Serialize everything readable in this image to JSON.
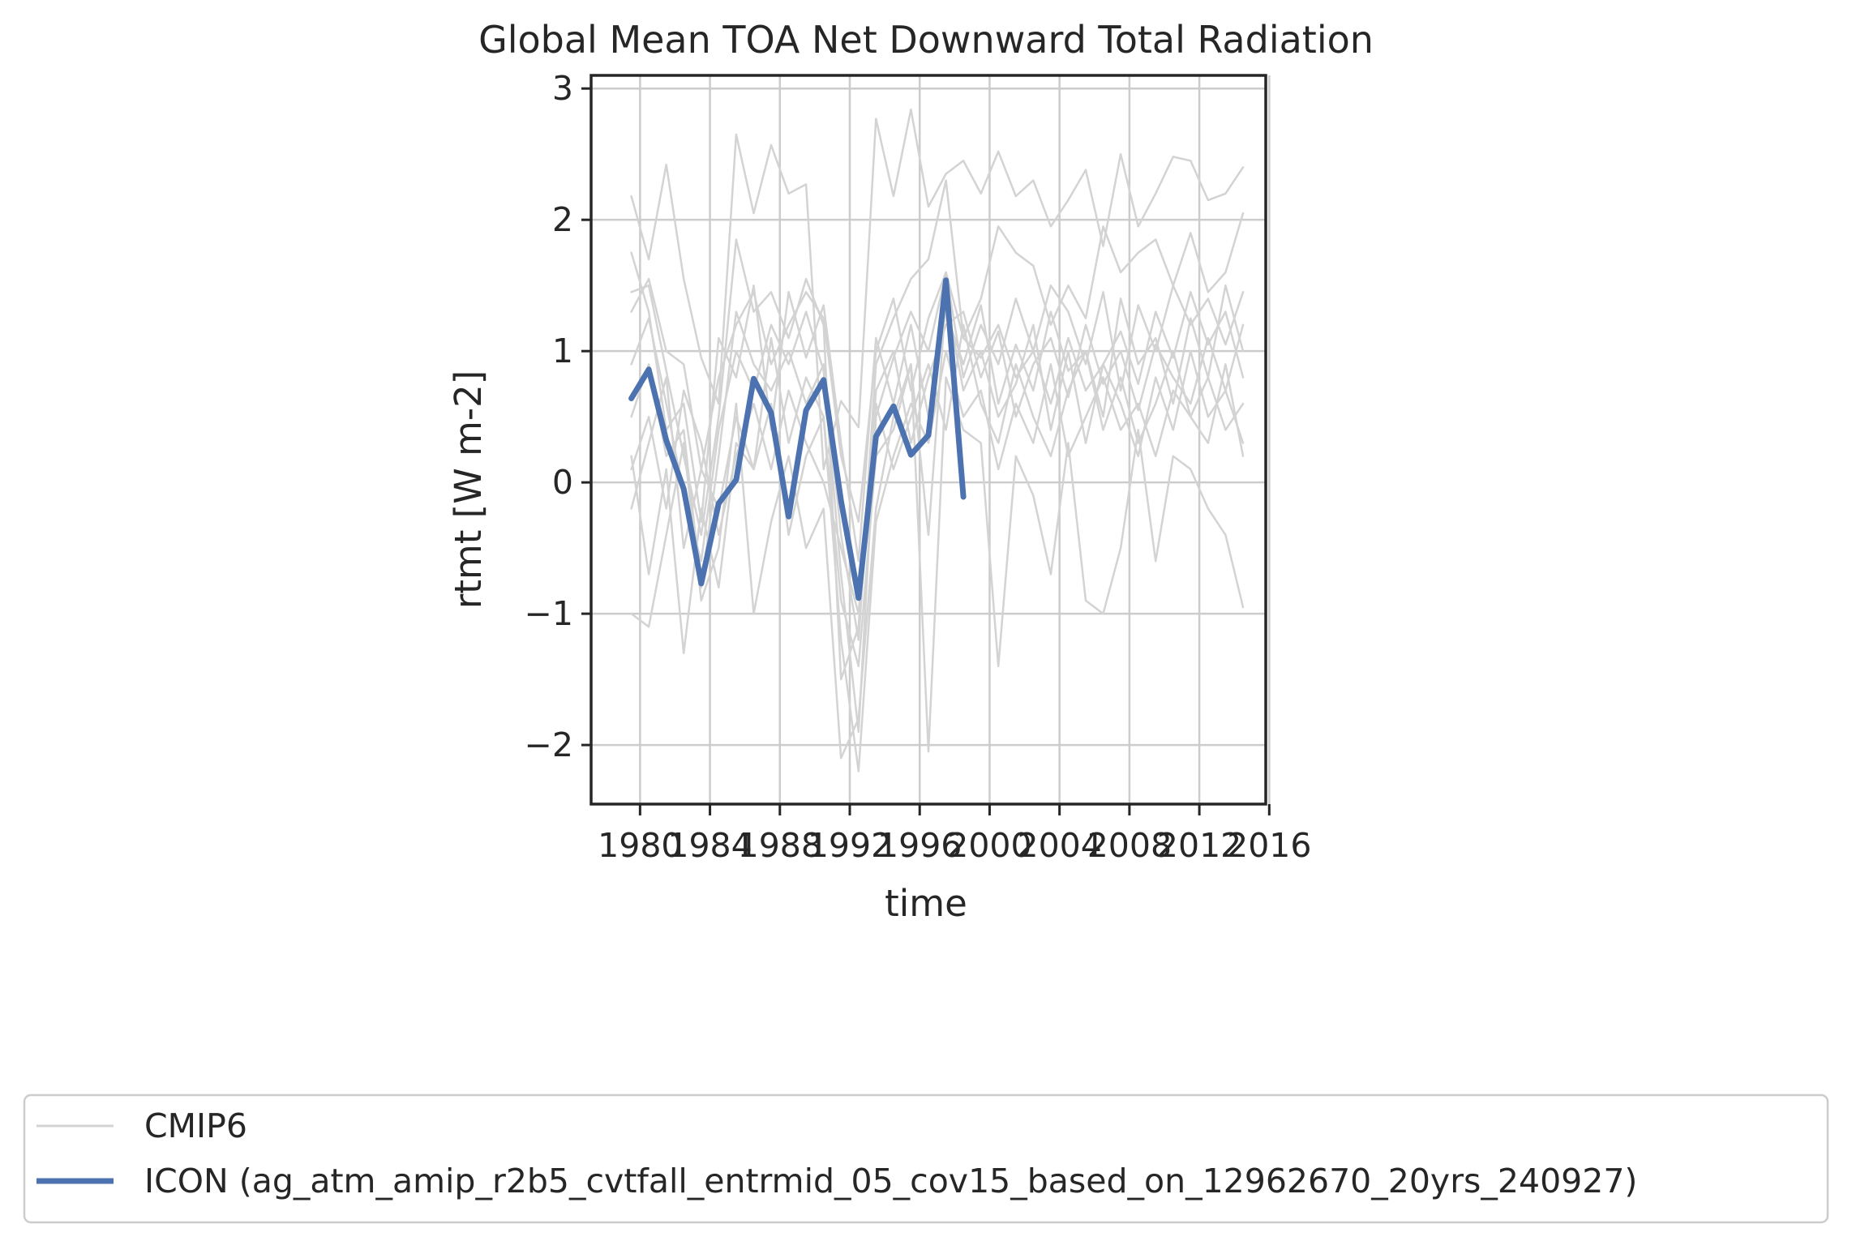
{
  "chart_data": {
    "type": "line",
    "title": "Global Mean TOA Net Downward Total Radiation",
    "xlabel": "time",
    "ylabel": "rtmt [W m-2]",
    "xlim": [
      1977.2,
      2015.8
    ],
    "ylim": [
      -2.45,
      3.1
    ],
    "xticks": [
      1980,
      1984,
      1988,
      1992,
      1996,
      2000,
      2004,
      2008,
      2012,
      2016
    ],
    "xtick_labels": [
      "1980",
      "1984",
      "1988",
      "1992",
      "1996",
      "2000",
      "2004",
      "2008",
      "2012",
      "2016"
    ],
    "yticks": [
      -2,
      -1,
      0,
      1,
      2,
      3
    ],
    "ytick_labels": [
      "−2",
      "−1",
      "0",
      "1",
      "2",
      "3"
    ],
    "grid": true,
    "legend": {
      "placement": "below",
      "entries": [
        {
          "label": "CMIP6",
          "color": "#d3d3d3"
        },
        {
          "label": "ICON (ag_atm_amip_r2b5_cvtfall_entrmid_05_cov15_based_on_12962670_20yrs_240927)",
          "color": "#4c72b0"
        }
      ]
    },
    "colors": {
      "cmip6": "#d3d3d3",
      "icon": "#4c72b0",
      "grid": "#cccccc",
      "axes": "#262626"
    },
    "series": [
      {
        "name": "ICON (ag_atm_amip_r2b5_cvtfall_entrmid_05_cov15_based_on_12962670_20yrs_240927)",
        "color": "#4c72b0",
        "highlight": true,
        "x": [
          1979.5,
          1980.5,
          1981.5,
          1982.5,
          1983.5,
          1984.5,
          1985.5,
          1986.5,
          1987.5,
          1988.5,
          1989.5,
          1990.5,
          1991.5,
          1992.5,
          1993.5,
          1994.5,
          1995.5,
          1996.5,
          1997.5,
          1998.5
        ],
        "y": [
          0.64,
          0.86,
          0.32,
          -0.05,
          -0.77,
          -0.16,
          0.02,
          0.79,
          0.53,
          -0.26,
          0.55,
          0.78,
          -0.14,
          -0.88,
          0.35,
          0.58,
          0.21,
          0.36,
          1.54,
          -0.11
        ]
      },
      {
        "name": "CMIP6",
        "color": "#d3d3d3",
        "x": [
          1979.5,
          1980.5,
          1981.5,
          1982.5,
          1983.5,
          1984.5,
          1985.5,
          1986.5,
          1987.5,
          1988.5,
          1989.5,
          1990.5,
          1991.5,
          1992.5,
          1993.5,
          1994.5,
          1995.5,
          1996.5,
          1997.5,
          1998.5,
          1999.5,
          2000.5,
          2001.5,
          2002.5,
          2003.5,
          2004.5,
          2005.5,
          2006.5,
          2007.5,
          2008.5,
          2009.5,
          2010.5,
          2011.5,
          2012.5,
          2013.5,
          2014.5
        ],
        "y": [
          2.18,
          1.7,
          2.42,
          1.55,
          0.95,
          0.6,
          2.65,
          2.05,
          2.57,
          2.2,
          2.27,
          0.1,
          0.62,
          0.42,
          2.77,
          2.18,
          2.84,
          2.1,
          2.35,
          2.45,
          2.2,
          2.52,
          2.18,
          2.3,
          1.95,
          2.15,
          2.38,
          1.8,
          2.5,
          1.95,
          2.2,
          2.48,
          2.45,
          2.15,
          2.2,
          2.4
        ]
      },
      {
        "name": "CMIP6",
        "color": "#d3d3d3",
        "x": [
          1979.5,
          1980.5,
          1981.5,
          1982.5,
          1983.5,
          1984.5,
          1985.5,
          1986.5,
          1987.5,
          1988.5,
          1989.5,
          1990.5,
          1991.5,
          1992.5,
          1993.5,
          1994.5,
          1995.5,
          1996.5,
          1997.5,
          1998.5,
          1999.5,
          2000.5,
          2001.5,
          2002.5,
          2003.5,
          2004.5,
          2005.5,
          2006.5,
          2007.5,
          2008.5,
          2009.5,
          2010.5,
          2011.5,
          2012.5,
          2013.5,
          2014.5
        ],
        "y": [
          1.45,
          1.5,
          0.85,
          0.2,
          -0.4,
          0.5,
          1.85,
          1.3,
          1.45,
          1.1,
          1.55,
          1.2,
          -1.5,
          -1.1,
          0.9,
          1.25,
          1.55,
          1.7,
          2.3,
          1.1,
          1.4,
          1.95,
          1.75,
          1.65,
          1.2,
          1.5,
          1.25,
          1.95,
          1.6,
          1.75,
          1.85,
          1.5,
          1.9,
          1.45,
          1.6,
          2.05
        ]
      },
      {
        "name": "CMIP6",
        "color": "#d3d3d3",
        "x": [
          1979.5,
          1980.5,
          1981.5,
          1982.5,
          1983.5,
          1984.5,
          1985.5,
          1986.5,
          1987.5,
          1988.5,
          1989.5,
          1990.5,
          1991.5,
          1992.5,
          1993.5,
          1994.5,
          1995.5,
          1996.5,
          1997.5,
          1998.5,
          1999.5,
          2000.5,
          2001.5,
          2002.5,
          2003.5,
          2004.5,
          2005.5,
          2006.5,
          2007.5,
          2008.5,
          2009.5,
          2010.5,
          2011.5,
          2012.5,
          2013.5,
          2014.5
        ],
        "y": [
          -1.0,
          -1.1,
          -0.4,
          0.3,
          -0.9,
          -0.5,
          0.6,
          -1.0,
          -0.3,
          0.2,
          -0.5,
          -0.2,
          -2.1,
          -1.8,
          -0.2,
          0.5,
          0.9,
          -2.05,
          0.8,
          0.4,
          0.3,
          -1.4,
          0.2,
          -0.1,
          -0.7,
          0.3,
          -0.9,
          -1.0,
          -0.5,
          0.4,
          -0.6,
          0.2,
          0.1,
          -0.2,
          -0.4,
          -0.95
        ]
      },
      {
        "name": "CMIP6",
        "color": "#d3d3d3",
        "x": [
          1979.5,
          1980.5,
          1981.5,
          1982.5,
          1983.5,
          1984.5,
          1985.5,
          1986.5,
          1987.5,
          1988.5,
          1989.5,
          1990.5,
          1991.5,
          1992.5,
          1993.5,
          1994.5,
          1995.5,
          1996.5,
          1997.5,
          1998.5,
          1999.5,
          2000.5,
          2001.5,
          2002.5,
          2003.5,
          2004.5,
          2005.5,
          2006.5,
          2007.5,
          2008.5,
          2009.5,
          2010.5,
          2011.5,
          2012.5,
          2013.5,
          2014.5
        ],
        "y": [
          0.9,
          1.25,
          0.6,
          -0.1,
          -0.6,
          0.4,
          1.0,
          0.7,
          1.2,
          0.9,
          1.3,
          0.85,
          -0.7,
          -1.9,
          0.5,
          0.95,
          1.3,
          1.0,
          1.6,
          1.1,
          0.95,
          1.2,
          0.8,
          1.0,
          0.6,
          1.1,
          0.7,
          0.9,
          1.15,
          0.75,
          1.3,
          0.95,
          1.45,
          1.05,
          1.3,
          0.8
        ]
      },
      {
        "name": "CMIP6",
        "color": "#d3d3d3",
        "x": [
          1979.5,
          1980.5,
          1981.5,
          1982.5,
          1983.5,
          1984.5,
          1985.5,
          1986.5,
          1987.5,
          1988.5,
          1989.5,
          1990.5,
          1991.5,
          1992.5,
          1993.5,
          1994.5,
          1995.5,
          1996.5,
          1997.5,
          1998.5,
          1999.5,
          2000.5,
          2001.5,
          2002.5,
          2003.5,
          2004.5,
          2005.5,
          2006.5,
          2007.5,
          2008.5,
          2009.5,
          2010.5,
          2011.5,
          2012.5,
          2013.5,
          2014.5
        ],
        "y": [
          0.2,
          -0.7,
          0.1,
          -1.3,
          -0.2,
          -0.8,
          0.3,
          0.1,
          0.6,
          -0.4,
          0.2,
          0.5,
          -1.2,
          -2.2,
          -0.3,
          0.2,
          0.6,
          0.3,
          1.0,
          0.5,
          0.7,
          0.1,
          0.6,
          0.3,
          0.9,
          0.2,
          0.5,
          0.8,
          0.4,
          0.6,
          0.2,
          0.7,
          0.5,
          0.3,
          0.9,
          0.2
        ]
      },
      {
        "name": "CMIP6",
        "color": "#d3d3d3",
        "x": [
          1979.5,
          1980.5,
          1981.5,
          1982.5,
          1983.5,
          1984.5,
          1985.5,
          1986.5,
          1987.5,
          1988.5,
          1989.5,
          1990.5,
          1991.5,
          1992.5,
          1993.5,
          1994.5,
          1995.5,
          1996.5,
          1997.5,
          1998.5,
          1999.5,
          2000.5,
          2001.5,
          2002.5,
          2003.5,
          2004.5,
          2005.5,
          2006.5,
          2007.5,
          2008.5,
          2009.5,
          2010.5,
          2011.5,
          2012.5,
          2013.5,
          2014.5
        ],
        "y": [
          1.75,
          1.3,
          0.4,
          0.6,
          -0.3,
          1.1,
          0.8,
          1.5,
          0.4,
          1.45,
          0.95,
          1.35,
          0.3,
          -0.6,
          1.1,
          0.6,
          1.2,
          0.5,
          1.3,
          0.9,
          1.35,
          0.6,
          1.05,
          0.7,
          1.3,
          0.85,
          1.0,
          0.5,
          1.4,
          0.9,
          1.1,
          0.6,
          1.25,
          0.8,
          1.5,
          1.0
        ]
      },
      {
        "name": "CMIP6",
        "color": "#d3d3d3",
        "x": [
          1979.5,
          1980.5,
          1981.5,
          1982.5,
          1983.5,
          1984.5,
          1985.5,
          1986.5,
          1987.5,
          1988.5,
          1989.5,
          1990.5,
          1991.5,
          1992.5,
          1993.5,
          1994.5,
          1995.5,
          1996.5,
          1997.5,
          1998.5,
          1999.5,
          2000.5,
          2001.5,
          2002.5,
          2003.5,
          2004.5,
          2005.5,
          2006.5,
          2007.5,
          2008.5,
          2009.5,
          2010.5,
          2011.5,
          2012.5,
          2013.5,
          2014.5
        ],
        "y": [
          0.5,
          0.9,
          0.2,
          0.4,
          -0.8,
          0.2,
          1.3,
          0.9,
          0.7,
          1.0,
          0.6,
          0.9,
          -0.4,
          -1.2,
          0.7,
          1.0,
          0.3,
          0.8,
          1.2,
          1.3,
          0.8,
          1.15,
          0.5,
          0.9,
          1.1,
          0.65,
          1.2,
          0.75,
          1.0,
          0.55,
          1.05,
          0.8,
          0.6,
          1.1,
          0.7,
          1.2
        ]
      },
      {
        "name": "CMIP6",
        "color": "#d3d3d3",
        "x": [
          1979.5,
          1980.5,
          1981.5,
          1982.5,
          1983.5,
          1984.5,
          1985.5,
          1986.5,
          1987.5,
          1988.5,
          1989.5,
          1990.5,
          1991.5,
          1992.5,
          1993.5,
          1994.5,
          1995.5,
          1996.5,
          1997.5,
          1998.5,
          1999.5,
          2000.5,
          2001.5,
          2002.5,
          2003.5,
          2004.5,
          2005.5,
          2006.5,
          2007.5,
          2008.5,
          2009.5,
          2010.5,
          2011.5,
          2012.5,
          2013.5,
          2014.5
        ],
        "y": [
          -0.2,
          0.3,
          0.8,
          -0.5,
          0.1,
          -0.2,
          0.5,
          0.1,
          1.1,
          0.3,
          0.8,
          0.5,
          -0.9,
          -1.4,
          0.2,
          0.4,
          0.9,
          -0.4,
          1.4,
          0.7,
          1.0,
          0.5,
          0.75,
          1.2,
          0.4,
          1.0,
          0.3,
          0.9,
          0.6,
          0.2,
          0.8,
          0.4,
          1.0,
          0.5,
          0.7,
          0.3
        ]
      },
      {
        "name": "CMIP6",
        "color": "#d3d3d3",
        "x": [
          1979.5,
          1980.5,
          1981.5,
          1982.5,
          1983.5,
          1984.5,
          1985.5,
          1986.5,
          1987.5,
          1988.5,
          1989.5,
          1990.5,
          1991.5,
          1992.5,
          1993.5,
          1994.5,
          1995.5,
          1996.5,
          1997.5,
          1998.5,
          1999.5,
          2000.5,
          2001.5,
          2002.5,
          2003.5,
          2004.5,
          2005.5,
          2006.5,
          2007.5,
          2008.5,
          2009.5,
          2010.5,
          2011.5,
          2012.5,
          2013.5,
          2014.5
        ],
        "y": [
          1.3,
          1.55,
          1.0,
          0.9,
          0.1,
          0.8,
          1.2,
          1.45,
          0.9,
          1.2,
          1.45,
          1.25,
          0.2,
          -0.3,
          1.0,
          1.4,
          0.7,
          1.25,
          1.6,
          0.8,
          1.2,
          0.9,
          1.4,
          1.0,
          1.5,
          1.3,
          0.9,
          1.45,
          0.7,
          1.35,
          1.0,
          1.5,
          1.2,
          1.4,
          1.05,
          1.45
        ]
      },
      {
        "name": "CMIP6",
        "color": "#d3d3d3",
        "x": [
          1979.5,
          1980.5,
          1981.5,
          1982.5,
          1983.5,
          1984.5,
          1985.5,
          1986.5,
          1987.5,
          1988.5,
          1989.5,
          1990.5,
          1991.5,
          1992.5,
          1993.5,
          1994.5,
          1995.5,
          1996.5,
          1997.5,
          1998.5,
          1999.5,
          2000.5,
          2001.5,
          2002.5,
          2003.5,
          2004.5,
          2005.5,
          2006.5,
          2007.5,
          2008.5,
          2009.5,
          2010.5,
          2011.5,
          2012.5,
          2013.5,
          2014.5
        ],
        "y": [
          0.1,
          0.5,
          -0.2,
          0.7,
          0.3,
          -0.4,
          0.2,
          0.6,
          0.1,
          0.7,
          0.3,
          0.0,
          -0.5,
          -1.0,
          0.6,
          0.1,
          0.5,
          0.9,
          0.4,
          1.2,
          0.6,
          0.3,
          0.9,
          0.5,
          0.2,
          0.7,
          1.0,
          0.4,
          0.8,
          0.3,
          0.6,
          1.0,
          0.5,
          0.8,
          0.4,
          0.6
        ]
      }
    ]
  }
}
